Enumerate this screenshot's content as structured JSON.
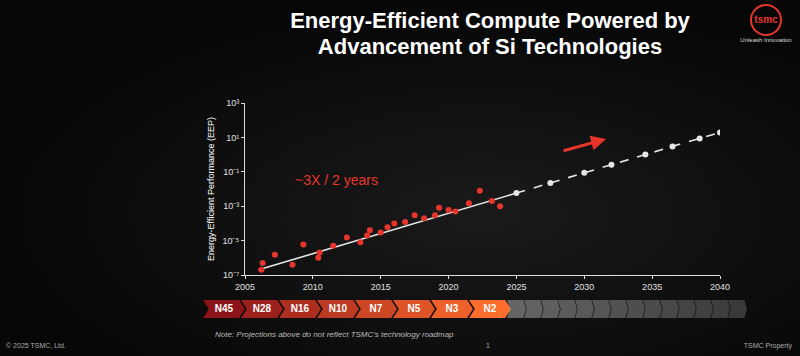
{
  "title": "Energy-Efficient Compute Powered by\nAdvancement of Si Technologies",
  "logo": {
    "text": "tsmc",
    "tagline": "Unleash Innovation"
  },
  "chart_data": {
    "type": "scatter",
    "y_label": "Energy-Efficient Performance (EEP)",
    "annotations": [
      {
        "text": "~3X / 2 years",
        "color": "#e8352b"
      }
    ],
    "log": "y",
    "grid": false,
    "xlim": [
      2005,
      2040
    ],
    "xticks": [
      2005,
      2010,
      2015,
      2020,
      2025,
      2030,
      2035,
      2040
    ],
    "ylim": [
      1e-07,
      1000
    ],
    "yticks": [
      {
        "value": 1e-07,
        "label": "10⁻⁷"
      },
      {
        "value": 1e-05,
        "label": "10⁻⁵"
      },
      {
        "value": 0.001,
        "label": "10⁻³"
      },
      {
        "value": 0.1,
        "label": "10⁻¹"
      },
      {
        "value": 10,
        "label": "10¹"
      },
      {
        "value": 1000,
        "label": "10³"
      }
    ],
    "series": [
      {
        "type": "line",
        "line_style": "solid",
        "marker": "none",
        "color": "#e6e6e6",
        "x": [
          2006,
          2025
        ],
        "values": [
          2e-07,
          0.0058
        ]
      },
      {
        "type": "line",
        "line_style": "dash",
        "marker": "circle",
        "color": "#e6e6e6",
        "x": [
          2025,
          2027.5,
          2030,
          2032,
          2034.5,
          2036.5,
          2038.5,
          2040
        ],
        "values": [
          0.0058,
          0.022,
          0.087,
          0.26,
          1.0,
          3,
          8.7,
          19.5
        ]
      },
      {
        "type": "scatter",
        "line_style": "none",
        "marker": "circle",
        "color": "#e8352b",
        "x": [
          2006.2,
          2006.3,
          2007.2,
          2008.5,
          2009.3,
          2010.4,
          2010.5,
          2011.5,
          2012.5,
          2013.5,
          2014.0,
          2014.2,
          2015.0,
          2015.5,
          2016.0,
          2016.8,
          2017.5,
          2018.2,
          2019.0,
          2019.3,
          2020.0,
          2020.5,
          2021.5,
          2022.3,
          2023.2,
          2023.8
        ],
        "values": [
          2e-07,
          5e-07,
          1.5e-06,
          4e-07,
          6e-06,
          1e-06,
          2e-06,
          5e-06,
          1.5e-05,
          8e-06,
          2e-05,
          4e-05,
          3e-05,
          6e-05,
          0.0001,
          0.00012,
          0.0003,
          0.0002,
          0.0003,
          0.0008,
          0.0006,
          0.0005,
          0.0015,
          0.008,
          0.002,
          0.001
        ]
      }
    ]
  },
  "process_nodes": [
    "N45",
    "N28",
    "N16",
    "N10",
    "N7",
    "N5",
    "N3",
    "N2"
  ],
  "note": "Note: Projections above do not reflect TSMC's technology roadmap",
  "footer": {
    "copyright": "© 2025 TSMC, Ltd.",
    "page": "1",
    "property": "TSMC Property"
  }
}
